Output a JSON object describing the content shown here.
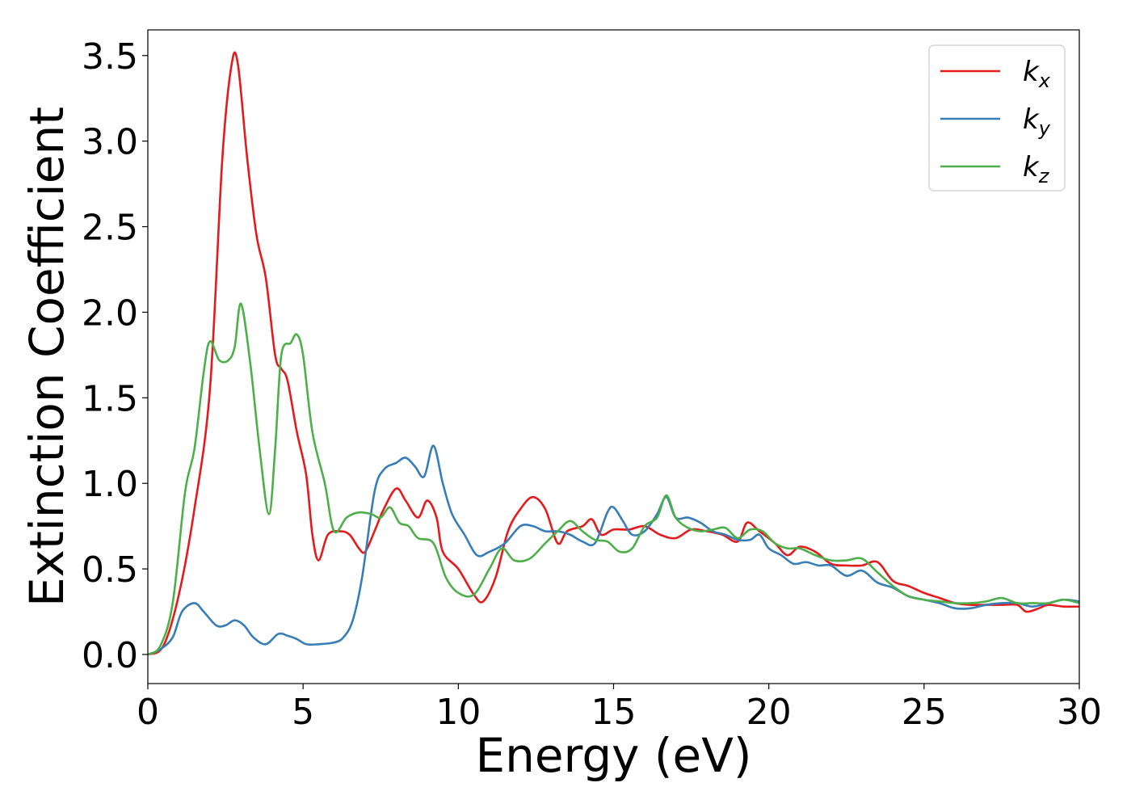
{
  "chart_data": {
    "type": "line",
    "title": "",
    "xlabel": "Energy (eV)",
    "ylabel": "Extinction Coefficient",
    "xlim": [
      0,
      30
    ],
    "ylim": [
      -0.17,
      3.65
    ],
    "xticks": [
      0,
      5,
      10,
      15,
      20,
      25,
      30
    ],
    "xtick_labels": [
      "0",
      "5",
      "10",
      "15",
      "20",
      "25",
      "30"
    ],
    "yticks": [
      0.0,
      0.5,
      1.0,
      1.5,
      2.0,
      2.5,
      3.0,
      3.5
    ],
    "ytick_labels": [
      "0.0",
      "0.5",
      "1.0",
      "1.5",
      "2.0",
      "2.5",
      "3.0",
      "3.5"
    ],
    "grid": false,
    "legend_position": "top-right",
    "series": [
      {
        "name": "k_x",
        "label_main": "k",
        "label_sub": "x",
        "color": "#e41a1c",
        "points": [
          [
            0,
            0
          ],
          [
            0.5,
            0.05
          ],
          [
            1,
            0.35
          ],
          [
            1.5,
            0.85
          ],
          [
            2,
            1.55
          ],
          [
            2.4,
            2.9
          ],
          [
            2.7,
            3.45
          ],
          [
            2.9,
            3.45
          ],
          [
            3.2,
            2.9
          ],
          [
            3.5,
            2.45
          ],
          [
            3.8,
            2.2
          ],
          [
            4.1,
            1.75
          ],
          [
            4.3,
            1.67
          ],
          [
            4.5,
            1.6
          ],
          [
            4.8,
            1.3
          ],
          [
            5.1,
            1.05
          ],
          [
            5.3,
            0.7
          ],
          [
            5.5,
            0.55
          ],
          [
            5.8,
            0.7
          ],
          [
            6.2,
            0.72
          ],
          [
            6.5,
            0.7
          ],
          [
            6.8,
            0.62
          ],
          [
            7.0,
            0.6
          ],
          [
            7.3,
            0.72
          ],
          [
            7.6,
            0.85
          ],
          [
            8.0,
            0.97
          ],
          [
            8.3,
            0.9
          ],
          [
            8.7,
            0.8
          ],
          [
            9.0,
            0.9
          ],
          [
            9.3,
            0.8
          ],
          [
            9.5,
            0.6
          ],
          [
            10.0,
            0.5
          ],
          [
            10.5,
            0.35
          ],
          [
            10.8,
            0.31
          ],
          [
            11.2,
            0.45
          ],
          [
            11.6,
            0.72
          ],
          [
            12.0,
            0.85
          ],
          [
            12.4,
            0.92
          ],
          [
            12.8,
            0.85
          ],
          [
            13.2,
            0.65
          ],
          [
            13.5,
            0.72
          ],
          [
            14.0,
            0.75
          ],
          [
            14.3,
            0.79
          ],
          [
            14.6,
            0.7
          ],
          [
            15.0,
            0.73
          ],
          [
            15.5,
            0.73
          ],
          [
            16.0,
            0.75
          ],
          [
            16.5,
            0.7
          ],
          [
            17.0,
            0.68
          ],
          [
            17.5,
            0.73
          ],
          [
            18.0,
            0.72
          ],
          [
            18.5,
            0.7
          ],
          [
            19.0,
            0.66
          ],
          [
            19.3,
            0.77
          ],
          [
            19.7,
            0.72
          ],
          [
            20.2,
            0.65
          ],
          [
            20.6,
            0.58
          ],
          [
            21.0,
            0.63
          ],
          [
            21.5,
            0.6
          ],
          [
            22.0,
            0.53
          ],
          [
            22.5,
            0.52
          ],
          [
            23.0,
            0.52
          ],
          [
            23.5,
            0.54
          ],
          [
            24.0,
            0.43
          ],
          [
            24.5,
            0.4
          ],
          [
            25.0,
            0.36
          ],
          [
            25.5,
            0.33
          ],
          [
            26.0,
            0.3
          ],
          [
            26.5,
            0.29
          ],
          [
            27.0,
            0.29
          ],
          [
            27.5,
            0.29
          ],
          [
            28.0,
            0.29
          ],
          [
            28.3,
            0.25
          ],
          [
            28.7,
            0.27
          ],
          [
            29.0,
            0.29
          ],
          [
            29.5,
            0.28
          ],
          [
            30.0,
            0.28
          ]
        ]
      },
      {
        "name": "k_y",
        "label_main": "k",
        "label_sub": "y",
        "color": "#377eb8",
        "points": [
          [
            0,
            0
          ],
          [
            0.4,
            0.03
          ],
          [
            0.8,
            0.1
          ],
          [
            1.1,
            0.25
          ],
          [
            1.5,
            0.3
          ],
          [
            1.8,
            0.25
          ],
          [
            2.2,
            0.17
          ],
          [
            2.5,
            0.17
          ],
          [
            2.8,
            0.2
          ],
          [
            3.1,
            0.17
          ],
          [
            3.4,
            0.1
          ],
          [
            3.8,
            0.06
          ],
          [
            4.2,
            0.12
          ],
          [
            4.5,
            0.11
          ],
          [
            4.8,
            0.09
          ],
          [
            5.1,
            0.06
          ],
          [
            5.5,
            0.06
          ],
          [
            6.0,
            0.07
          ],
          [
            6.3,
            0.1
          ],
          [
            6.6,
            0.2
          ],
          [
            6.9,
            0.45
          ],
          [
            7.3,
            0.95
          ],
          [
            7.6,
            1.08
          ],
          [
            8.0,
            1.12
          ],
          [
            8.3,
            1.15
          ],
          [
            8.6,
            1.1
          ],
          [
            8.9,
            1.04
          ],
          [
            9.2,
            1.22
          ],
          [
            9.5,
            1.0
          ],
          [
            9.8,
            0.82
          ],
          [
            10.2,
            0.7
          ],
          [
            10.6,
            0.58
          ],
          [
            11.0,
            0.6
          ],
          [
            11.5,
            0.65
          ],
          [
            12.0,
            0.75
          ],
          [
            12.4,
            0.75
          ],
          [
            12.8,
            0.72
          ],
          [
            13.2,
            0.72
          ],
          [
            13.6,
            0.7
          ],
          [
            14.0,
            0.66
          ],
          [
            14.4,
            0.65
          ],
          [
            14.8,
            0.83
          ],
          [
            15.0,
            0.86
          ],
          [
            15.3,
            0.78
          ],
          [
            15.6,
            0.7
          ],
          [
            16.0,
            0.72
          ],
          [
            16.4,
            0.82
          ],
          [
            16.7,
            0.92
          ],
          [
            17.0,
            0.8
          ],
          [
            17.4,
            0.8
          ],
          [
            17.8,
            0.77
          ],
          [
            18.2,
            0.72
          ],
          [
            18.6,
            0.7
          ],
          [
            19.0,
            0.67
          ],
          [
            19.4,
            0.67
          ],
          [
            19.7,
            0.7
          ],
          [
            20.0,
            0.62
          ],
          [
            20.4,
            0.58
          ],
          [
            20.8,
            0.53
          ],
          [
            21.2,
            0.54
          ],
          [
            21.6,
            0.52
          ],
          [
            22.0,
            0.52
          ],
          [
            22.5,
            0.46
          ],
          [
            23.0,
            0.49
          ],
          [
            23.5,
            0.42
          ],
          [
            24.0,
            0.39
          ],
          [
            24.5,
            0.34
          ],
          [
            25.0,
            0.32
          ],
          [
            25.5,
            0.3
          ],
          [
            26.0,
            0.27
          ],
          [
            26.5,
            0.27
          ],
          [
            27.0,
            0.29
          ],
          [
            27.5,
            0.3
          ],
          [
            28.0,
            0.3
          ],
          [
            28.5,
            0.28
          ],
          [
            29.0,
            0.3
          ],
          [
            29.5,
            0.32
          ],
          [
            30.0,
            0.31
          ]
        ]
      },
      {
        "name": "k_z",
        "label_main": "k",
        "label_sub": "z",
        "color": "#4daf4a",
        "points": [
          [
            0,
            0
          ],
          [
            0.4,
            0.05
          ],
          [
            0.8,
            0.3
          ],
          [
            1.2,
            0.95
          ],
          [
            1.5,
            1.2
          ],
          [
            1.8,
            1.65
          ],
          [
            2.0,
            1.83
          ],
          [
            2.3,
            1.72
          ],
          [
            2.6,
            1.72
          ],
          [
            2.8,
            1.8
          ],
          [
            3.0,
            2.05
          ],
          [
            3.3,
            1.7
          ],
          [
            3.6,
            1.2
          ],
          [
            3.9,
            0.82
          ],
          [
            4.1,
            1.2
          ],
          [
            4.3,
            1.75
          ],
          [
            4.6,
            1.82
          ],
          [
            4.8,
            1.87
          ],
          [
            5.0,
            1.75
          ],
          [
            5.3,
            1.3
          ],
          [
            5.7,
            1.0
          ],
          [
            6.0,
            0.72
          ],
          [
            6.4,
            0.8
          ],
          [
            6.8,
            0.83
          ],
          [
            7.2,
            0.82
          ],
          [
            7.5,
            0.8
          ],
          [
            7.8,
            0.86
          ],
          [
            8.1,
            0.77
          ],
          [
            8.4,
            0.75
          ],
          [
            8.7,
            0.68
          ],
          [
            9.2,
            0.65
          ],
          [
            9.6,
            0.45
          ],
          [
            10.0,
            0.36
          ],
          [
            10.5,
            0.35
          ],
          [
            11.0,
            0.5
          ],
          [
            11.4,
            0.62
          ],
          [
            11.8,
            0.55
          ],
          [
            12.3,
            0.56
          ],
          [
            12.8,
            0.65
          ],
          [
            13.2,
            0.72
          ],
          [
            13.6,
            0.78
          ],
          [
            14.0,
            0.72
          ],
          [
            14.4,
            0.67
          ],
          [
            14.8,
            0.66
          ],
          [
            15.2,
            0.6
          ],
          [
            15.6,
            0.62
          ],
          [
            16.0,
            0.75
          ],
          [
            16.4,
            0.8
          ],
          [
            16.7,
            0.93
          ],
          [
            17.0,
            0.8
          ],
          [
            17.4,
            0.74
          ],
          [
            17.8,
            0.72
          ],
          [
            18.2,
            0.73
          ],
          [
            18.6,
            0.74
          ],
          [
            19.0,
            0.68
          ],
          [
            19.4,
            0.73
          ],
          [
            19.8,
            0.72
          ],
          [
            20.2,
            0.65
          ],
          [
            20.6,
            0.62
          ],
          [
            21.0,
            0.62
          ],
          [
            21.5,
            0.58
          ],
          [
            22.0,
            0.55
          ],
          [
            22.5,
            0.55
          ],
          [
            23.0,
            0.56
          ],
          [
            23.5,
            0.48
          ],
          [
            24.0,
            0.4
          ],
          [
            24.5,
            0.34
          ],
          [
            25.0,
            0.32
          ],
          [
            25.5,
            0.31
          ],
          [
            26.0,
            0.3
          ],
          [
            26.5,
            0.3
          ],
          [
            27.0,
            0.31
          ],
          [
            27.5,
            0.33
          ],
          [
            28.0,
            0.3
          ],
          [
            28.5,
            0.3
          ],
          [
            29.0,
            0.3
          ],
          [
            29.5,
            0.32
          ],
          [
            30.0,
            0.3
          ]
        ]
      }
    ]
  }
}
